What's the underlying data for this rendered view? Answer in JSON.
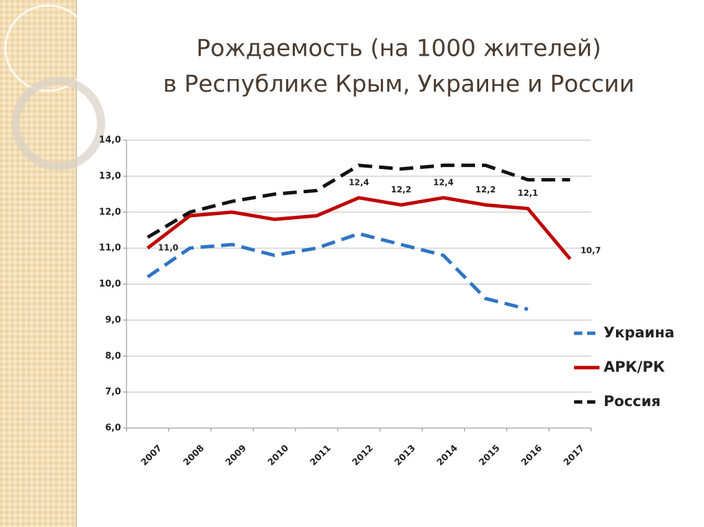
{
  "chart_data": {
    "type": "line",
    "title": "Рождаемость (на 1000 жителей)",
    "subtitle": "в  Республике Крым, Украине и России",
    "categories": [
      "2007",
      "2008",
      "2009",
      "2010",
      "2011",
      "2012",
      "2013",
      "2014",
      "2015",
      "2016",
      "2017"
    ],
    "series": [
      {
        "name": "Украина",
        "color": "#2e75c4",
        "style": "dashed",
        "values": [
          10.2,
          11.0,
          11.1,
          10.8,
          11.0,
          11.4,
          11.1,
          10.8,
          9.6,
          9.3,
          null
        ]
      },
      {
        "name": "АРК/РК",
        "color": "#c00000",
        "style": "solid",
        "values": [
          11.0,
          11.9,
          12.0,
          11.8,
          11.9,
          12.4,
          12.2,
          12.4,
          12.2,
          12.1,
          10.7
        ],
        "value_labels": [
          "11,0",
          null,
          null,
          null,
          null,
          "12,4",
          "12,2",
          "12,4",
          "12,2",
          "12,1",
          "10,7"
        ]
      },
      {
        "name": "Россия",
        "color": "#111111",
        "style": "dashed",
        "values": [
          11.3,
          12.0,
          12.3,
          12.5,
          12.6,
          13.3,
          13.2,
          13.3,
          13.3,
          12.9,
          12.9
        ]
      }
    ],
    "ylim": [
      6,
      14
    ],
    "yticks": [
      {
        "value": 6,
        "label": "6,0"
      },
      {
        "value": 7,
        "label": "7,0"
      },
      {
        "value": 8,
        "label": "8,0"
      },
      {
        "value": 9,
        "label": "9,0"
      },
      {
        "value": 10,
        "label": "10,0"
      },
      {
        "value": 11,
        "label": "11,0"
      },
      {
        "value": 12,
        "label": "12,0"
      },
      {
        "value": 13,
        "label": "13,0"
      },
      {
        "value": 14,
        "label": "14,0"
      }
    ],
    "grid": true,
    "legend": "right"
  }
}
